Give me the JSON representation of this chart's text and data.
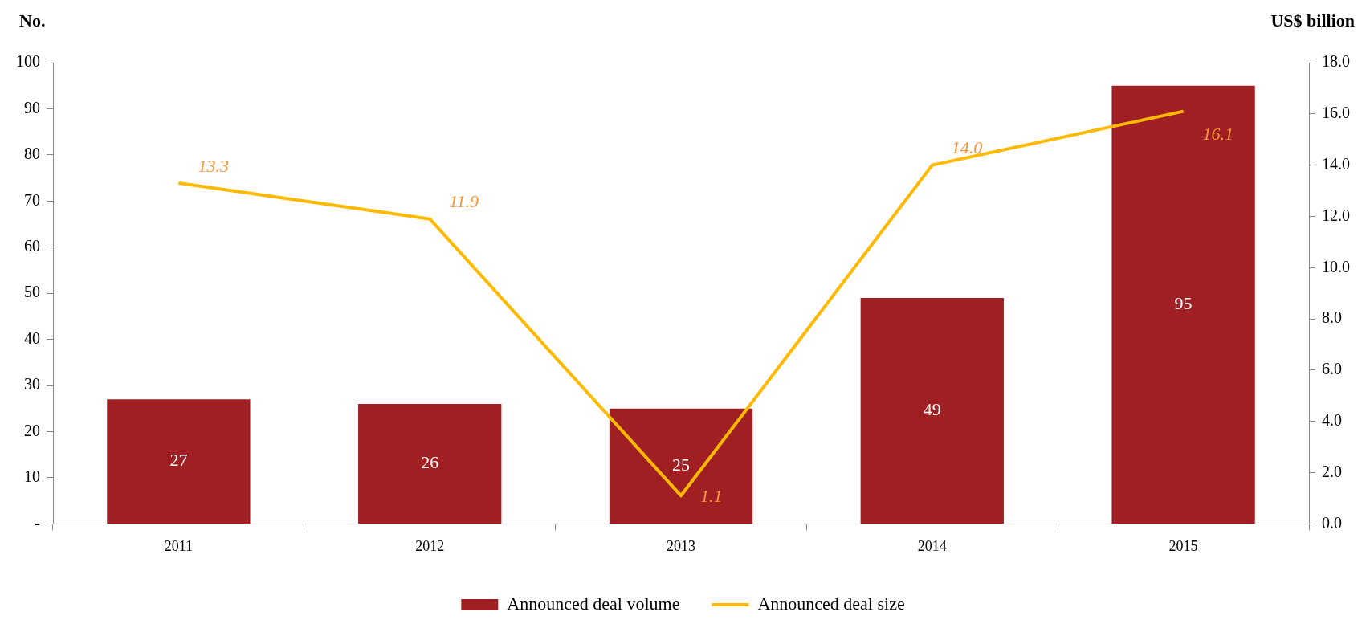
{
  "chart_data": {
    "type": "bar",
    "ylabel": "No.",
    "y2label": "US$ billion",
    "categories": [
      "2011",
      "2012",
      "2013",
      "2014",
      "2015"
    ],
    "series": [
      {
        "name": "Announced deal volume",
        "color": "#a01f22",
        "values": [
          27,
          26,
          25,
          49,
          95
        ],
        "value_labels": [
          "27",
          "26",
          "25",
          "49",
          "95"
        ]
      },
      {
        "name": "Announced deal size",
        "type": "line",
        "axis": "y2",
        "color": "#ffb900",
        "values": [
          13.3,
          11.9,
          1.1,
          14.0,
          16.1
        ],
        "value_labels": [
          "13.3",
          "11.9",
          "1.1",
          "14.0",
          "16.1"
        ]
      }
    ],
    "ylim": [
      0,
      100
    ],
    "yticks": [
      {
        "value": 0,
        "label": "-"
      },
      10,
      20,
      30,
      40,
      50,
      60,
      70,
      80,
      90,
      100
    ],
    "y2lim": [
      0,
      18
    ],
    "y2ticks": [
      {
        "value": 0,
        "label": "0.0"
      },
      {
        "value": 2,
        "label": "2.0"
      },
      {
        "value": 4,
        "label": "4.0"
      },
      {
        "value": 6,
        "label": "6.0"
      },
      {
        "value": 8,
        "label": "8.0"
      },
      {
        "value": 10,
        "label": "10.0"
      },
      {
        "value": 12,
        "label": "12.0"
      },
      {
        "value": 14,
        "label": "14.0"
      },
      {
        "value": 16,
        "label": "16.0"
      },
      {
        "value": 18,
        "label": "18.0"
      }
    ],
    "grid": false,
    "legend": "bottom",
    "marker": "none"
  }
}
